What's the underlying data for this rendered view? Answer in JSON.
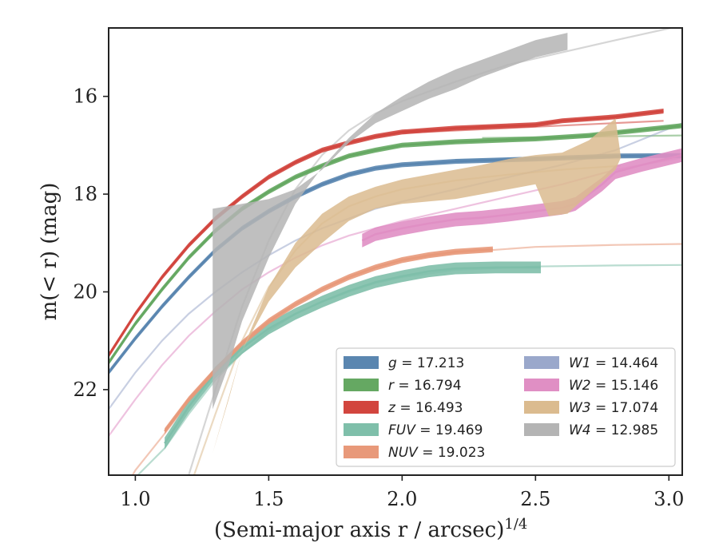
{
  "chart_data": {
    "type": "line",
    "xlabel": "(Semi-major axis r / arcsec)",
    "xlabel_sup": "1/4",
    "ylabel": "m(< r) (mag)",
    "xlim": [
      0.9,
      3.05
    ],
    "ylim": [
      23.75,
      14.6
    ],
    "y_inverted": true,
    "xticks": [
      1.0,
      1.5,
      2.0,
      2.5,
      3.0
    ],
    "xtick_labels": [
      "1.0",
      "1.5",
      "2.0",
      "2.5",
      "3.0"
    ],
    "yticks": [
      16,
      18,
      20,
      22
    ],
    "ytick_labels": [
      "16",
      "18",
      "20",
      "22"
    ],
    "grid": false,
    "legend_position": "lower-right",
    "series": [
      {
        "name": "g = 17.213",
        "legend_sym": "g",
        "legend_val": "= 17.213",
        "color": "#5a86b0",
        "kind": "band",
        "points": [
          [
            0.9,
            21.65
          ],
          [
            1.0,
            20.95
          ],
          [
            1.1,
            20.3
          ],
          [
            1.2,
            19.7
          ],
          [
            1.3,
            19.15
          ],
          [
            1.4,
            18.7
          ],
          [
            1.5,
            18.35
          ],
          [
            1.6,
            18.05
          ],
          [
            1.7,
            17.8
          ],
          [
            1.8,
            17.6
          ],
          [
            1.9,
            17.47
          ],
          [
            2.0,
            17.4
          ],
          [
            2.2,
            17.33
          ],
          [
            2.5,
            17.28
          ],
          [
            2.8,
            17.22
          ],
          [
            3.05,
            17.21
          ]
        ],
        "band_width": 0.05,
        "model": [
          [
            2.2,
            17.3
          ],
          [
            3.05,
            17.21
          ]
        ]
      },
      {
        "name": "r = 16.794",
        "legend_sym": "r",
        "legend_val": "= 16.794",
        "color": "#65a862",
        "kind": "band",
        "points": [
          [
            0.9,
            21.45
          ],
          [
            1.0,
            20.65
          ],
          [
            1.1,
            19.95
          ],
          [
            1.2,
            19.3
          ],
          [
            1.3,
            18.75
          ],
          [
            1.4,
            18.3
          ],
          [
            1.5,
            17.95
          ],
          [
            1.6,
            17.65
          ],
          [
            1.7,
            17.42
          ],
          [
            1.8,
            17.22
          ],
          [
            1.9,
            17.1
          ],
          [
            2.0,
            17.0
          ],
          [
            2.2,
            16.93
          ],
          [
            2.5,
            16.87
          ],
          [
            2.7,
            16.8
          ],
          [
            3.05,
            16.6
          ]
        ],
        "band_width": 0.05,
        "model": [
          [
            2.3,
            16.85
          ],
          [
            3.05,
            16.8
          ]
        ]
      },
      {
        "name": "z = 16.493",
        "legend_sym": "z",
        "legend_val": "= 16.493",
        "color": "#d2453e",
        "kind": "band",
        "points": [
          [
            0.9,
            21.3
          ],
          [
            1.0,
            20.45
          ],
          [
            1.1,
            19.7
          ],
          [
            1.2,
            19.05
          ],
          [
            1.3,
            18.5
          ],
          [
            1.4,
            18.05
          ],
          [
            1.5,
            17.65
          ],
          [
            1.6,
            17.35
          ],
          [
            1.7,
            17.1
          ],
          [
            1.8,
            16.95
          ],
          [
            1.9,
            16.82
          ],
          [
            2.0,
            16.73
          ],
          [
            2.2,
            16.65
          ],
          [
            2.5,
            16.58
          ],
          [
            2.6,
            16.5
          ],
          [
            2.8,
            16.42
          ],
          [
            2.98,
            16.3
          ]
        ],
        "band_width": 0.05,
        "model": [
          [
            2.0,
            16.75
          ],
          [
            2.98,
            16.5
          ]
        ]
      },
      {
        "name": "FUV = 19.469",
        "legend_sym": "FUV",
        "legend_val": "= 19.469",
        "color": "#7fbfaa",
        "kind": "band",
        "points": [
          [
            1.11,
            23.1
          ],
          [
            1.2,
            22.35
          ],
          [
            1.3,
            21.65
          ],
          [
            1.4,
            21.15
          ],
          [
            1.5,
            20.75
          ],
          [
            1.6,
            20.45
          ],
          [
            1.7,
            20.2
          ],
          [
            1.8,
            19.98
          ],
          [
            1.9,
            19.8
          ],
          [
            2.0,
            19.68
          ],
          [
            2.1,
            19.58
          ],
          [
            2.2,
            19.52
          ],
          [
            2.35,
            19.5
          ],
          [
            2.52,
            19.5
          ]
        ],
        "band_width": 0.12,
        "model": [
          [
            0.9,
            24.5
          ],
          [
            1.0,
            23.8
          ],
          [
            1.11,
            23.2
          ],
          [
            1.2,
            22.5
          ],
          [
            1.3,
            21.8
          ],
          [
            1.4,
            21.25
          ],
          [
            1.5,
            20.8
          ],
          [
            1.6,
            20.45
          ],
          [
            1.7,
            20.2
          ],
          [
            1.8,
            20.0
          ],
          [
            1.9,
            19.82
          ],
          [
            2.0,
            19.7
          ],
          [
            2.2,
            19.55
          ],
          [
            2.5,
            19.48
          ],
          [
            2.8,
            19.46
          ],
          [
            3.05,
            19.45
          ]
        ]
      },
      {
        "name": "NUV = 19.023",
        "legend_sym": "NUV",
        "legend_val": "= 19.023",
        "color": "#e8997a",
        "kind": "band",
        "points": [
          [
            1.11,
            22.85
          ],
          [
            1.2,
            22.2
          ],
          [
            1.3,
            21.6
          ],
          [
            1.4,
            21.05
          ],
          [
            1.5,
            20.6
          ],
          [
            1.6,
            20.25
          ],
          [
            1.7,
            19.95
          ],
          [
            1.8,
            19.7
          ],
          [
            1.9,
            19.5
          ],
          [
            2.0,
            19.35
          ],
          [
            2.1,
            19.25
          ],
          [
            2.2,
            19.18
          ],
          [
            2.34,
            19.13
          ]
        ],
        "band_width": 0.06,
        "model": [
          [
            0.9,
            24.6
          ],
          [
            1.0,
            23.65
          ],
          [
            1.11,
            22.9
          ],
          [
            1.2,
            22.25
          ],
          [
            1.3,
            21.62
          ],
          [
            1.4,
            21.08
          ],
          [
            1.5,
            20.62
          ],
          [
            1.6,
            20.25
          ],
          [
            1.7,
            19.95
          ],
          [
            1.8,
            19.7
          ],
          [
            1.9,
            19.5
          ],
          [
            2.0,
            19.35
          ],
          [
            2.2,
            19.2
          ],
          [
            2.5,
            19.08
          ],
          [
            2.8,
            19.04
          ],
          [
            3.05,
            19.02
          ]
        ]
      },
      {
        "name": "W1 = 14.464",
        "legend_sym": "W1",
        "legend_val": "= 14.464",
        "color": "#9aa8cb",
        "kind": "line",
        "points": [],
        "band_width": 0,
        "model": [
          [
            0.9,
            22.4
          ],
          [
            1.0,
            21.65
          ],
          [
            1.1,
            21.0
          ],
          [
            1.2,
            20.45
          ],
          [
            1.3,
            20.0
          ],
          [
            1.4,
            19.6
          ],
          [
            1.5,
            19.25
          ],
          [
            1.6,
            18.95
          ],
          [
            1.7,
            18.7
          ],
          [
            1.8,
            18.5
          ],
          [
            1.9,
            18.3
          ],
          [
            2.0,
            18.15
          ],
          [
            2.2,
            17.9
          ],
          [
            2.4,
            17.65
          ],
          [
            2.6,
            17.4
          ],
          [
            2.8,
            17.1
          ],
          [
            3.05,
            16.55
          ]
        ]
      },
      {
        "name": "W2 = 15.146",
        "legend_sym": "W2",
        "legend_val": "= 15.146",
        "color": "#e08fc4",
        "kind": "band",
        "points": [
          [
            1.85,
            18.95
          ],
          [
            1.9,
            18.82
          ],
          [
            2.0,
            18.7
          ],
          [
            2.1,
            18.6
          ],
          [
            2.2,
            18.52
          ],
          [
            2.3,
            18.48
          ],
          [
            2.4,
            18.42
          ],
          [
            2.5,
            18.35
          ],
          [
            2.6,
            18.28
          ],
          [
            2.65,
            18.2
          ],
          [
            2.75,
            17.8
          ],
          [
            2.8,
            17.55
          ],
          [
            2.9,
            17.4
          ],
          [
            3.05,
            17.2
          ]
        ],
        "band_width": 0.14,
        "model": [
          [
            0.9,
            22.95
          ],
          [
            1.0,
            22.2
          ],
          [
            1.1,
            21.5
          ],
          [
            1.2,
            20.9
          ],
          [
            1.3,
            20.4
          ],
          [
            1.4,
            19.95
          ],
          [
            1.5,
            19.6
          ],
          [
            1.6,
            19.3
          ],
          [
            1.7,
            19.05
          ],
          [
            1.8,
            18.85
          ],
          [
            2.0,
            18.55
          ],
          [
            2.2,
            18.3
          ],
          [
            2.4,
            18.05
          ],
          [
            2.6,
            17.8
          ],
          [
            2.8,
            17.5
          ],
          [
            3.05,
            17.25
          ]
        ]
      },
      {
        "name": "W3 = 17.074",
        "legend_sym": "W3",
        "legend_val": "= 17.074",
        "color": "#dbbb8f",
        "kind": "area",
        "upper": [
          [
            1.29,
            23.3
          ],
          [
            1.4,
            21.2
          ],
          [
            1.5,
            20.2
          ],
          [
            1.6,
            19.5
          ],
          [
            1.7,
            19.0
          ],
          [
            1.8,
            18.55
          ],
          [
            1.9,
            18.3
          ],
          [
            2.0,
            18.2
          ],
          [
            2.1,
            18.15
          ],
          [
            2.2,
            18.1
          ],
          [
            2.3,
            18.0
          ],
          [
            2.4,
            17.9
          ],
          [
            2.5,
            17.8
          ],
          [
            2.55,
            18.45
          ],
          [
            2.62,
            18.4
          ],
          [
            2.7,
            18.0
          ],
          [
            2.8,
            17.5
          ],
          [
            2.82,
            17.25
          ]
        ],
        "lower": [
          [
            1.29,
            23.3
          ],
          [
            1.35,
            22.2
          ],
          [
            1.4,
            21.2
          ],
          [
            1.5,
            19.9
          ],
          [
            1.6,
            19.0
          ],
          [
            1.7,
            18.4
          ],
          [
            1.8,
            18.05
          ],
          [
            1.9,
            17.85
          ],
          [
            2.0,
            17.7
          ],
          [
            2.1,
            17.6
          ],
          [
            2.2,
            17.5
          ],
          [
            2.3,
            17.4
          ],
          [
            2.4,
            17.28
          ],
          [
            2.5,
            17.2
          ],
          [
            2.6,
            17.15
          ],
          [
            2.7,
            16.9
          ],
          [
            2.8,
            16.45
          ],
          [
            2.82,
            17.25
          ]
        ],
        "model": [
          [
            1.22,
            23.75
          ],
          [
            1.3,
            22.5
          ],
          [
            1.4,
            21.0
          ],
          [
            1.5,
            19.9
          ],
          [
            1.6,
            19.15
          ],
          [
            1.7,
            18.6
          ],
          [
            1.8,
            18.25
          ],
          [
            1.9,
            18.05
          ],
          [
            2.0,
            17.9
          ],
          [
            2.2,
            17.72
          ],
          [
            2.4,
            17.6
          ],
          [
            2.6,
            17.5
          ],
          [
            2.82,
            17.42
          ]
        ]
      },
      {
        "name": "W4 = 12.985",
        "legend_sym": "W4",
        "legend_val": "= 12.985",
        "color": "#b4b4b4",
        "kind": "area",
        "upper": [
          [
            1.29,
            18.3
          ],
          [
            1.4,
            18.2
          ],
          [
            1.5,
            18.1
          ],
          [
            1.6,
            17.9
          ],
          [
            1.7,
            17.5
          ],
          [
            1.8,
            16.95
          ],
          [
            1.9,
            16.55
          ],
          [
            2.0,
            16.3
          ],
          [
            2.1,
            16.05
          ],
          [
            2.2,
            15.85
          ],
          [
            2.3,
            15.6
          ],
          [
            2.4,
            15.4
          ],
          [
            2.5,
            15.2
          ],
          [
            2.62,
            15.05
          ]
        ],
        "lower": [
          [
            1.29,
            22.4
          ],
          [
            1.35,
            21.5
          ],
          [
            1.4,
            20.6
          ],
          [
            1.5,
            19.3
          ],
          [
            1.6,
            18.2
          ],
          [
            1.7,
            17.45
          ],
          [
            1.8,
            16.85
          ],
          [
            1.9,
            16.35
          ],
          [
            2.0,
            16.0
          ],
          [
            2.1,
            15.7
          ],
          [
            2.2,
            15.45
          ],
          [
            2.3,
            15.25
          ],
          [
            2.4,
            15.05
          ],
          [
            2.5,
            14.85
          ],
          [
            2.62,
            14.7
          ]
        ],
        "model": [
          [
            1.2,
            23.75
          ],
          [
            1.3,
            22.0
          ],
          [
            1.4,
            20.3
          ],
          [
            1.5,
            18.95
          ],
          [
            1.6,
            17.9
          ],
          [
            1.7,
            17.2
          ],
          [
            1.8,
            16.7
          ],
          [
            1.9,
            16.35
          ],
          [
            2.0,
            16.1
          ],
          [
            2.2,
            15.7
          ],
          [
            2.4,
            15.35
          ],
          [
            2.6,
            15.1
          ],
          [
            2.8,
            14.85
          ],
          [
            3.05,
            14.55
          ]
        ]
      }
    ]
  }
}
